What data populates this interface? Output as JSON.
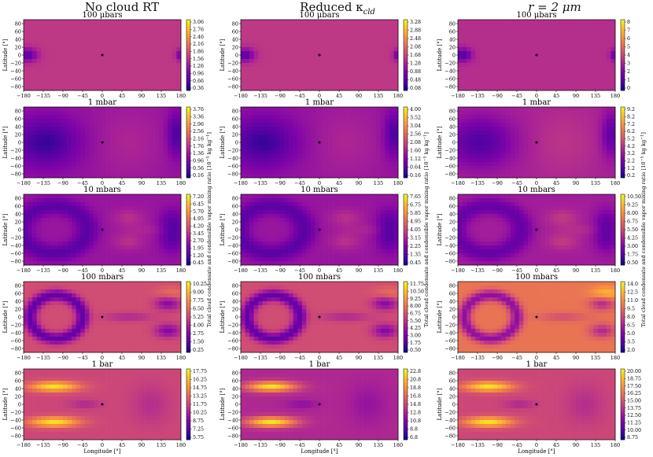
{
  "figure": {
    "columns": [
      {
        "title": "No cloud RT"
      },
      {
        "title": "Reduced κ",
        "title_sub": "cld"
      },
      {
        "title": "r = 2 μm"
      }
    ],
    "rows": [
      "100 μbars",
      "1 mbar",
      "10 mbars",
      "100 mbars",
      "1 bar"
    ],
    "ylabel": "Latitude [°]",
    "xlabel": "Longitude [°]",
    "colorbar_label_a": "Total cloud condensate and condensible vapor mixing ratio [10",
    "colorbar_label_exp": "−5",
    "colorbar_label_b": " kg kg",
    "colorbar_label_exp2": "−1",
    "colorbar_label_c": "]"
  },
  "chart_data": [
    {
      "type": "heatmap",
      "column": "No cloud RT",
      "title": "100 μbars",
      "xlim": [
        -180,
        180
      ],
      "ylim": [
        -90,
        90
      ],
      "xticks": [
        "−180",
        "−135",
        "−90",
        "−45",
        "0",
        "45",
        "90",
        "135",
        "180"
      ],
      "yticks": [
        "80",
        "60",
        "40",
        "20",
        "0",
        "−20",
        "−40",
        "−60",
        "−80"
      ],
      "colorbar_ticks": [
        "3.06",
        "2.76",
        "2.46",
        "2.16",
        "1.86",
        "1.56",
        "1.26",
        "0.96",
        "0.66",
        "0.36"
      ],
      "cmap": "plasma"
    },
    {
      "type": "heatmap",
      "column": "Reduced κcld",
      "title": "100 μbars",
      "xlim": [
        -180,
        180
      ],
      "ylim": [
        -90,
        90
      ],
      "colorbar_ticks": [
        "3.28",
        "2.88",
        "2.48",
        "2.08",
        "1.68",
        "1.28",
        "0.88",
        "0.48",
        "0.08"
      ],
      "cmap": "plasma"
    },
    {
      "type": "heatmap",
      "column": "r = 2 μm",
      "title": "100 μbars",
      "xlim": [
        -180,
        180
      ],
      "ylim": [
        -90,
        90
      ],
      "colorbar_ticks": [
        "8",
        "7",
        "6",
        "5",
        "4",
        "3",
        "2",
        "1",
        "0"
      ],
      "cmap": "plasma"
    },
    {
      "type": "heatmap",
      "column": "No cloud RT",
      "title": "1 mbar",
      "xlim": [
        -180,
        180
      ],
      "ylim": [
        -90,
        90
      ],
      "colorbar_ticks": [
        "3.76",
        "3.36",
        "2.96",
        "2.56",
        "2.16",
        "1.76",
        "1.36",
        "0.96",
        "0.56",
        "0.16"
      ],
      "cmap": "plasma"
    },
    {
      "type": "heatmap",
      "column": "Reduced κcld",
      "title": "1 mbar",
      "xlim": [
        -180,
        180
      ],
      "ylim": [
        -90,
        90
      ],
      "colorbar_ticks": [
        "4.00",
        "3.52",
        "3.04",
        "2.56",
        "2.08",
        "1.60",
        "1.12",
        "0.64",
        "0.16"
      ],
      "cmap": "plasma"
    },
    {
      "type": "heatmap",
      "column": "r = 2 μm",
      "title": "1 mbar",
      "xlim": [
        -180,
        180
      ],
      "ylim": [
        -90,
        90
      ],
      "colorbar_ticks": [
        "9.2",
        "8.2",
        "7.2",
        "6.2",
        "5.2",
        "4.2",
        "3.2",
        "2.2",
        "1.2",
        "0.2"
      ],
      "cmap": "plasma"
    },
    {
      "type": "heatmap",
      "column": "No cloud RT",
      "title": "10 mbars",
      "xlim": [
        -180,
        180
      ],
      "ylim": [
        -90,
        90
      ],
      "colorbar_ticks": [
        "7.20",
        "6.45",
        "5.70",
        "4.95",
        "4.20",
        "3.45",
        "2.70",
        "1.95",
        "1.20",
        "0.45"
      ],
      "cmap": "plasma"
    },
    {
      "type": "heatmap",
      "column": "Reduced κcld",
      "title": "10 mbars",
      "xlim": [
        -180,
        180
      ],
      "ylim": [
        -90,
        90
      ],
      "colorbar_ticks": [
        "7.65",
        "6.75",
        "5.85",
        "4.95",
        "4.05",
        "3.15",
        "2.25",
        "1.35",
        "0.45"
      ],
      "cmap": "plasma"
    },
    {
      "type": "heatmap",
      "column": "r = 2 μm",
      "title": "10 mbars",
      "xlim": [
        -180,
        180
      ],
      "ylim": [
        -90,
        90
      ],
      "colorbar_ticks": [
        "10.50",
        "9.25",
        "8.00",
        "6.75",
        "5.50",
        "4.25",
        "3.00",
        "1.75",
        "0.50"
      ],
      "cmap": "plasma"
    },
    {
      "type": "heatmap",
      "column": "No cloud RT",
      "title": "100 mbars",
      "xlim": [
        -180,
        180
      ],
      "ylim": [
        -90,
        90
      ],
      "colorbar_ticks": [
        "10.25",
        "9.00",
        "7.75",
        "6.50",
        "5.25",
        "4.00",
        "2.75",
        "1.50",
        "0.25"
      ],
      "cmap": "plasma"
    },
    {
      "type": "heatmap",
      "column": "Reduced κcld",
      "title": "100 mbars",
      "xlim": [
        -180,
        180
      ],
      "ylim": [
        -90,
        90
      ],
      "colorbar_ticks": [
        "11.75",
        "10.50",
        "9.25",
        "8.00",
        "6.75",
        "5.50",
        "4.25",
        "3.00",
        "1.75",
        "0.50"
      ],
      "cmap": "plasma"
    },
    {
      "type": "heatmap",
      "column": "r = 2 μm",
      "title": "100 mbars",
      "xlim": [
        -180,
        180
      ],
      "ylim": [
        -90,
        90
      ],
      "colorbar_ticks": [
        "14.0",
        "12.5",
        "11.0",
        "9.5",
        "8.0",
        "6.5",
        "5.0",
        "3.5",
        "2.0"
      ],
      "cmap": "plasma"
    },
    {
      "type": "heatmap",
      "column": "No cloud RT",
      "title": "1 bar",
      "xlim": [
        -180,
        180
      ],
      "ylim": [
        -90,
        90
      ],
      "colorbar_ticks": [
        "17.75",
        "16.25",
        "14.75",
        "13.25",
        "11.75",
        "10.25",
        "8.75",
        "7.25",
        "5.75"
      ],
      "cmap": "plasma"
    },
    {
      "type": "heatmap",
      "column": "Reduced κcld",
      "title": "1 bar",
      "xlim": [
        -180,
        180
      ],
      "ylim": [
        -90,
        90
      ],
      "colorbar_ticks": [
        "22.8",
        "20.8",
        "18.8",
        "16.8",
        "14.8",
        "12.8",
        "10.8",
        "8.8",
        "6.8"
      ],
      "cmap": "plasma"
    },
    {
      "type": "heatmap",
      "column": "r = 2 μm",
      "title": "1 bar",
      "xlim": [
        -180,
        180
      ],
      "ylim": [
        -90,
        90
      ],
      "colorbar_ticks": [
        "20.00",
        "18.75",
        "17.50",
        "16.25",
        "15.00",
        "13.75",
        "12.50",
        "11.25",
        "10.00",
        "8.75"
      ],
      "cmap": "plasma"
    }
  ]
}
